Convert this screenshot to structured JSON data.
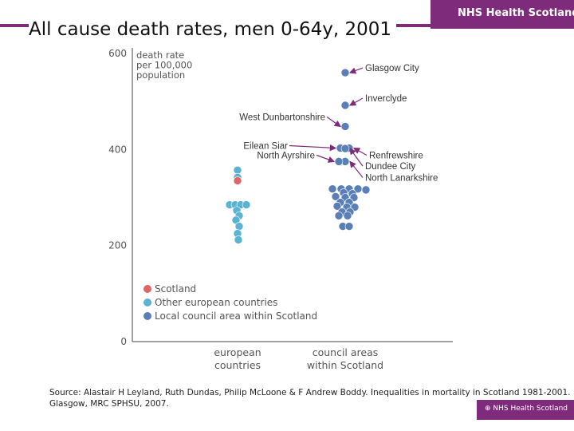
{
  "header": {
    "title": "All cause death rates, men 0-64y, 2001",
    "brand": "NHS Health Scotland"
  },
  "chart_data": {
    "type": "scatter",
    "ylabel_lines": [
      "death rate",
      "per 100,000",
      "population"
    ],
    "ylim": [
      0,
      600
    ],
    "yticks": [
      0,
      200,
      400,
      600
    ],
    "categories": [
      {
        "lines": [
          "european",
          "countries"
        ]
      },
      {
        "lines": [
          "council areas",
          "within Scotland"
        ]
      }
    ],
    "colors": {
      "scotland": "#e06565",
      "european": "#5ab3d3",
      "council": "#5a7fb7"
    },
    "legend_placement": "bottom-left",
    "legend": [
      {
        "key": "scotland",
        "label": "Scotland"
      },
      {
        "key": "european",
        "label": "Other european countries"
      },
      {
        "key": "council",
        "label": "Local council area within Scotland"
      }
    ],
    "series": [
      {
        "key": "european",
        "points": [
          {
            "y": 357,
            "dx": 0
          },
          {
            "y": 342,
            "dx": 0
          },
          {
            "y": 285,
            "dx": -10
          },
          {
            "y": 285,
            "dx": -3
          },
          {
            "y": 285,
            "dx": 4
          },
          {
            "y": 285,
            "dx": 11
          },
          {
            "y": 273,
            "dx": -1
          },
          {
            "y": 262,
            "dx": 2
          },
          {
            "y": 253,
            "dx": -2
          },
          {
            "y": 240,
            "dx": 2
          },
          {
            "y": 225,
            "dx": 0
          },
          {
            "y": 212,
            "dx": 1
          }
        ]
      },
      {
        "key": "scotland",
        "points": [
          {
            "y": 335,
            "dx": 0
          }
        ]
      },
      {
        "key": "council",
        "points": [
          {
            "y": 560,
            "dx": 0,
            "name": "Glasgow City"
          },
          {
            "y": 492,
            "dx": 0,
            "name": "Inverclyde"
          },
          {
            "y": 448,
            "dx": 0,
            "name": "West Dunbartonshire"
          },
          {
            "y": 403,
            "dx": -6,
            "name": "Eilean Siar"
          },
          {
            "y": 403,
            "dx": 5,
            "name": "Renfrewshire"
          },
          {
            "y": 402,
            "dx": 0,
            "name": "Dundee City"
          },
          {
            "y": 375,
            "dx": 0,
            "name": "North Lanarkshire"
          },
          {
            "y": 375,
            "dx": -8,
            "name": "North Ayrshire"
          },
          {
            "y": 318,
            "dx": -16
          },
          {
            "y": 318,
            "dx": -5
          },
          {
            "y": 318,
            "dx": 5
          },
          {
            "y": 318,
            "dx": 16
          },
          {
            "y": 316,
            "dx": 26
          },
          {
            "y": 310,
            "dx": -2
          },
          {
            "y": 308,
            "dx": 9
          },
          {
            "y": 302,
            "dx": -12
          },
          {
            "y": 300,
            "dx": 0
          },
          {
            "y": 300,
            "dx": 11
          },
          {
            "y": 290,
            "dx": -6
          },
          {
            "y": 290,
            "dx": 5
          },
          {
            "y": 282,
            "dx": -10
          },
          {
            "y": 280,
            "dx": 2
          },
          {
            "y": 280,
            "dx": 12
          },
          {
            "y": 270,
            "dx": -4
          },
          {
            "y": 270,
            "dx": 6
          },
          {
            "y": 262,
            "dx": -8
          },
          {
            "y": 262,
            "dx": 3
          },
          {
            "y": 240,
            "dx": -3
          },
          {
            "y": 240,
            "dx": 5
          }
        ]
      }
    ],
    "annotations": [
      {
        "text": "Glasgow City",
        "target": "Glasgow City",
        "side": "right"
      },
      {
        "text": "Inverclyde",
        "target": "Inverclyde",
        "side": "right"
      },
      {
        "text": "West Dunbartonshire",
        "target": "West Dunbartonshire",
        "side": "left"
      },
      {
        "text": "Dundee City",
        "target": "Dundee City",
        "side": "right"
      },
      {
        "text": "Eilean Siar",
        "target": "Eilean Siar",
        "side": "left"
      },
      {
        "text": "Renfrewshire",
        "target": "Renfrewshire",
        "side": "right"
      },
      {
        "text": "North Ayrshire",
        "target": "North Ayrshire",
        "side": "left"
      },
      {
        "text": "North Lanarkshire",
        "target": "North Lanarkshire",
        "side": "right"
      }
    ]
  },
  "source": {
    "line1": "Source: Alastair H Leyland, Ruth Dundas, Philip McLoone & F Andrew Boddy. Inequalities in mortality in Scotland 1981-2001.",
    "line2": "Glasgow, MRC SPHSU, 2007."
  },
  "footer": {
    "brand": "⊕ NHS Health Scotland"
  }
}
